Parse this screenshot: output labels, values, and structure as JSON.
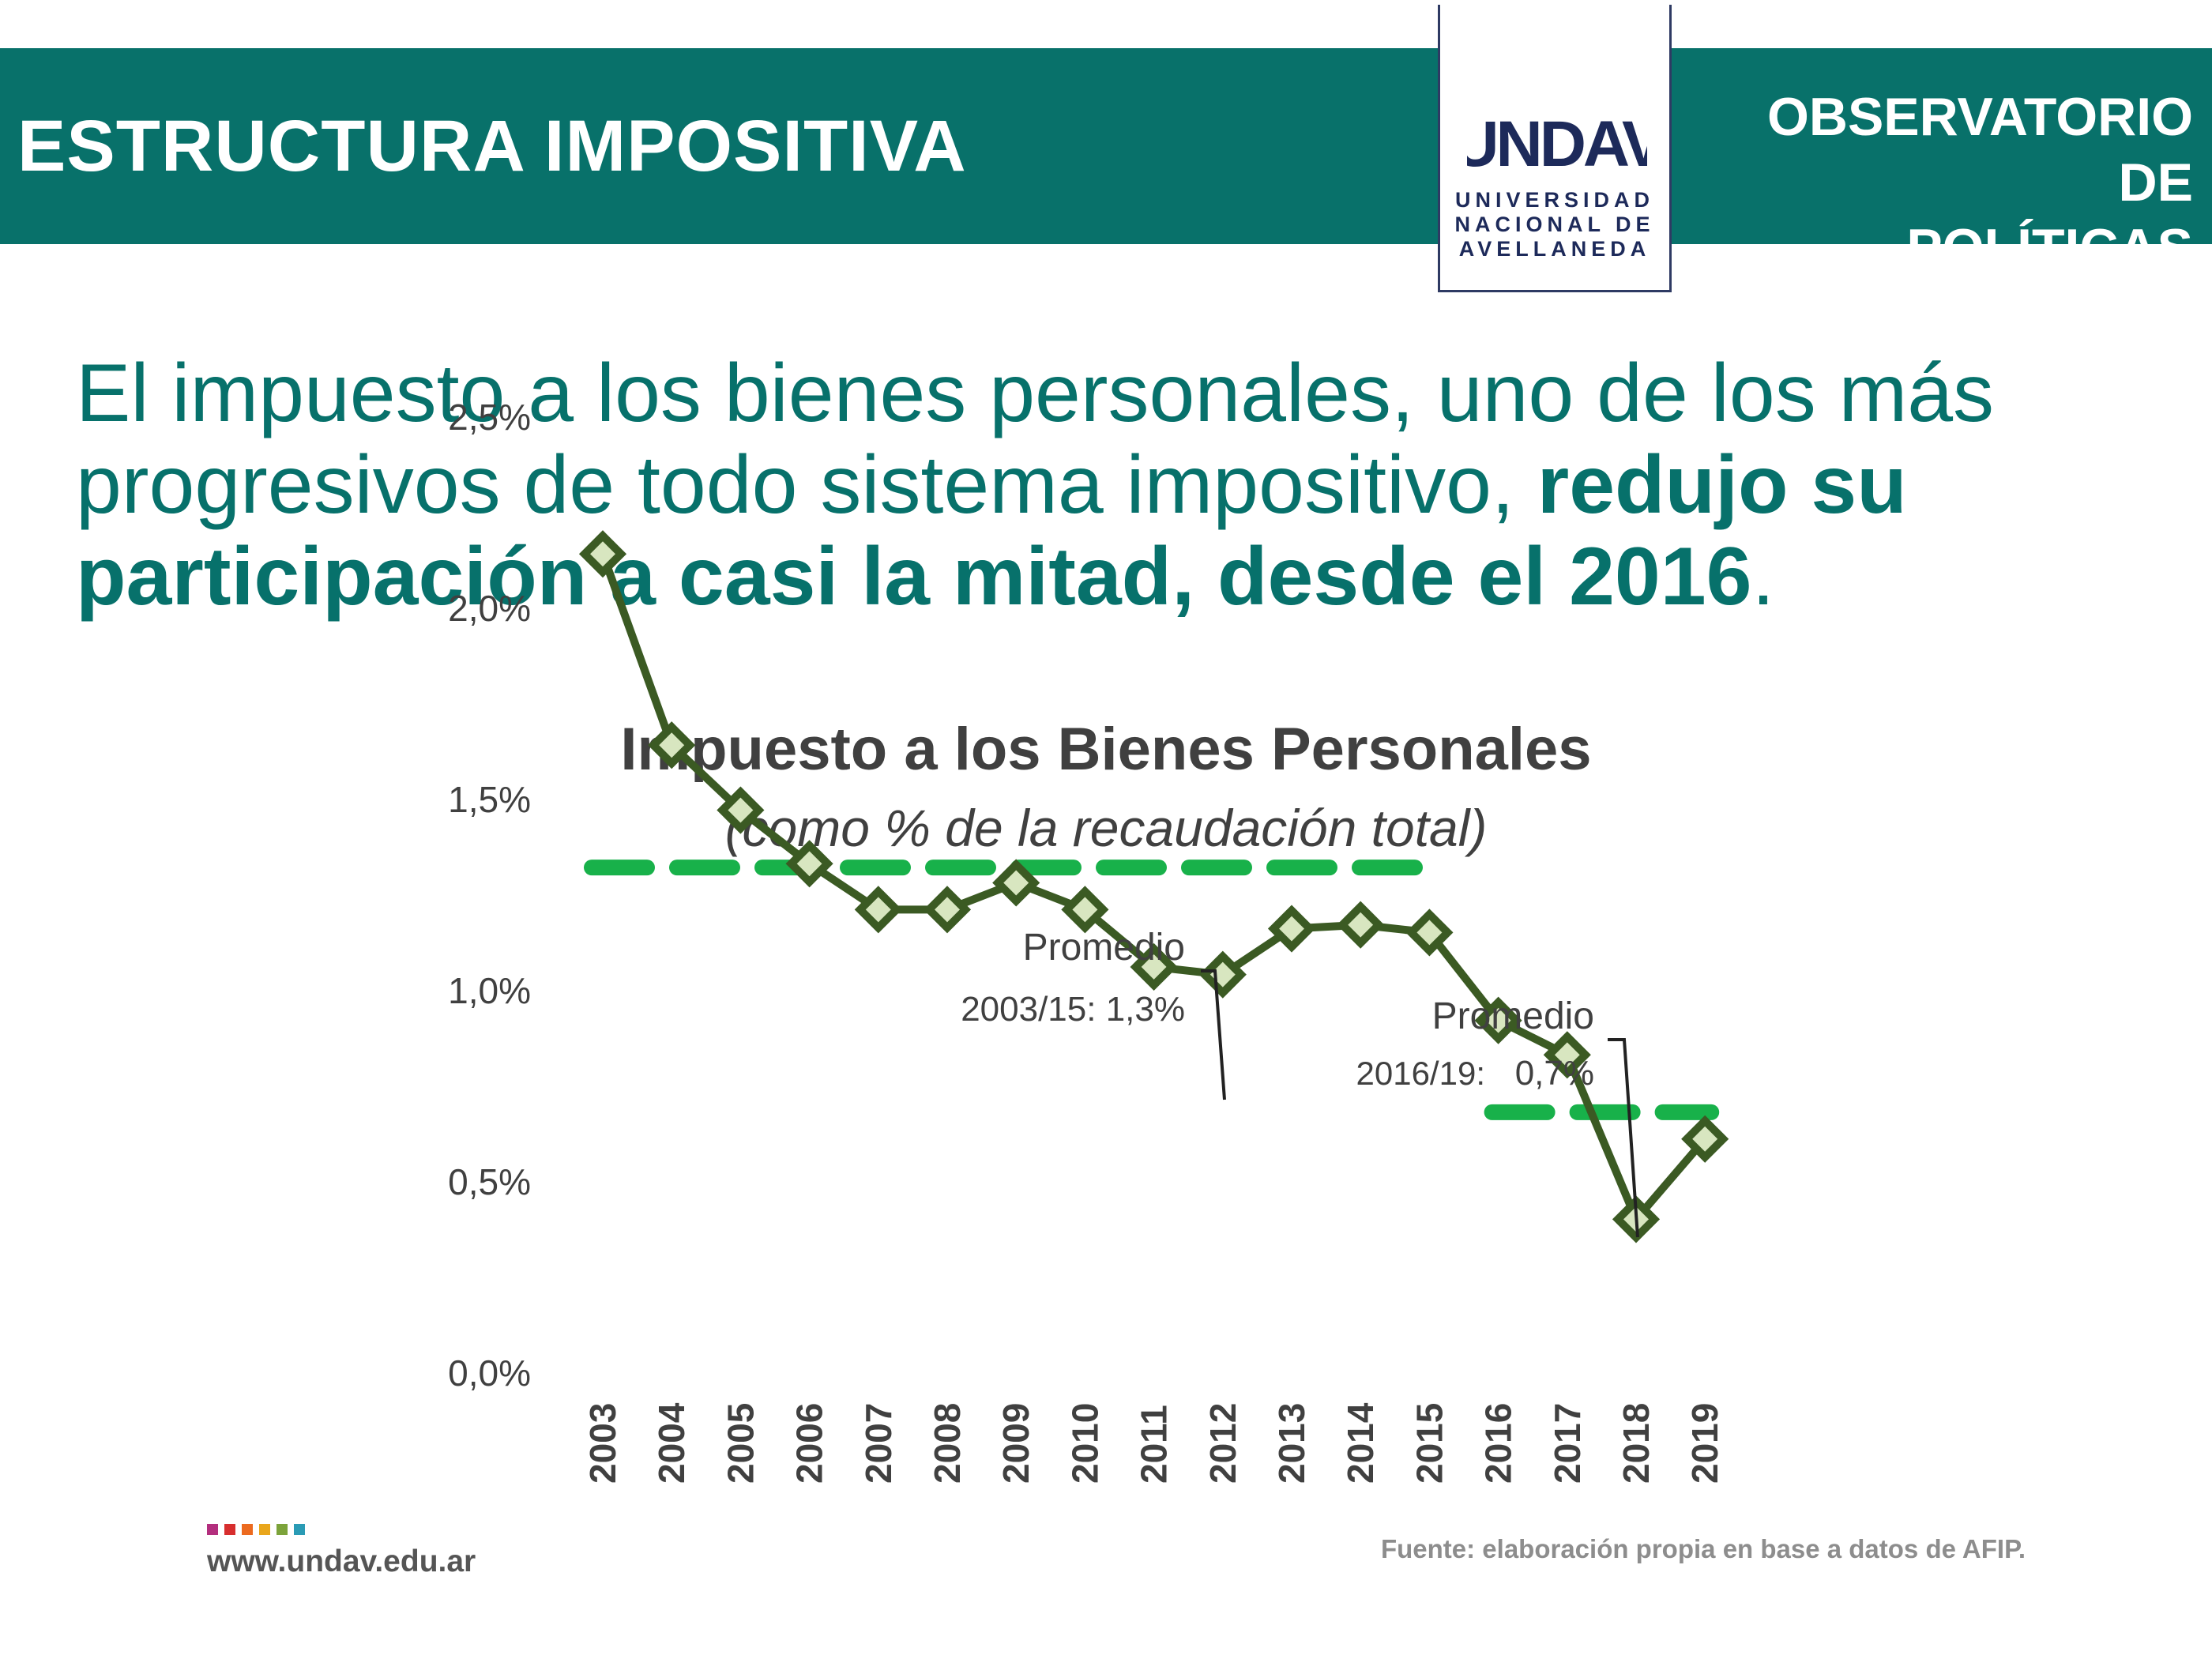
{
  "header": {
    "section_title": "ESTRUCTURA IMPOSITIVA",
    "observatory_line1": "OBSERVATORIO DE",
    "observatory_line2": "POLÍTICAS PÚBLICAS",
    "logo_mark": "UNDAV",
    "logo_line1": "UNIVERSIDAD",
    "logo_line2": "NACIONAL DE",
    "logo_line3": "AVELLANEDA"
  },
  "headline": {
    "normal_text": "El impuesto a los bienes personales, uno de los más progresivos de todo sistema impositivo, ",
    "bold_text": "redujo su participación a casi la mitad, desde el 2016",
    "end_text": "."
  },
  "chart_data": {
    "type": "line",
    "title": "Impuesto a los Bienes Personales",
    "subtitle": "(como % de la recaudación total)",
    "x": [
      "2003",
      "2004",
      "2005",
      "2006",
      "2007",
      "2008",
      "2009",
      "2010",
      "2011",
      "2012",
      "2013",
      "2014",
      "2015",
      "2016",
      "2017",
      "2018",
      "2019"
    ],
    "series": [
      {
        "values": [
          2.14,
          1.64,
          1.47,
          1.33,
          1.21,
          1.21,
          1.28,
          1.21,
          1.06,
          1.04,
          1.16,
          1.17,
          1.15,
          0.92,
          0.83,
          0.4,
          0.61
        ]
      }
    ],
    "ylim": [
      0,
      2.5
    ],
    "yticks": [
      0,
      0.5,
      1.0,
      1.5,
      2.0,
      2.5
    ],
    "ytick_labels": [
      "0,0%",
      "0,5%",
      "1,0%",
      "1,5%",
      "2,0%",
      "2,5%"
    ],
    "averages": [
      {
        "label_line1": "Promedio",
        "label_line2": "2003/15: 1,3%",
        "value": 1.32,
        "from": "2003",
        "to": "2015"
      },
      {
        "label_line1": "Promedio",
        "label_line2_a": "2016/19:",
        "label_line2_b": "0,7%",
        "value": 0.68,
        "from": "2016",
        "to": "2019"
      }
    ],
    "colors": {
      "line": "#3b5a23",
      "marker_fill": "#d8e6c0",
      "average": "#18b14a",
      "text": "#404040"
    }
  },
  "footer": {
    "website": "www.undav.edu.ar",
    "source": "Fuente: elaboración propia en base a datos de AFIP.",
    "dot_colors": [
      "#b32e7e",
      "#d72e2e",
      "#ec6a1f",
      "#e9a61c",
      "#7ca33a",
      "#2a9bb5"
    ]
  }
}
